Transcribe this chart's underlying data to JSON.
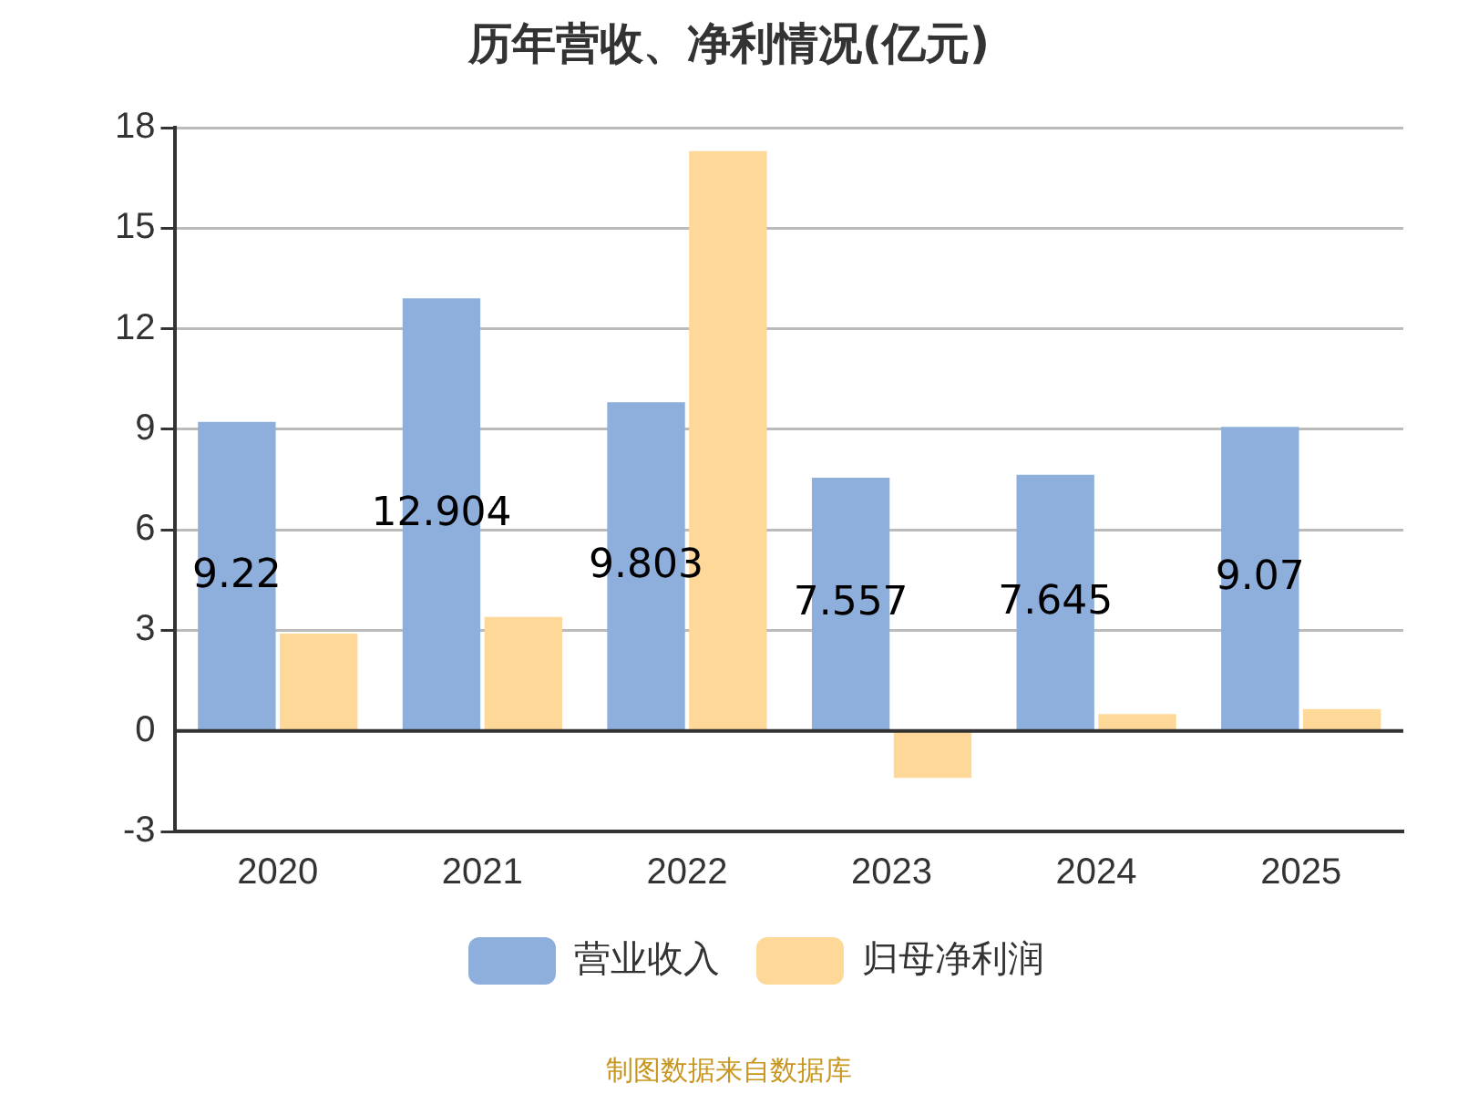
{
  "chart_data": {
    "type": "bar",
    "title": "历年营收、净利情况(亿元)",
    "categories": [
      "2020",
      "2021",
      "2022",
      "2023",
      "2024",
      "2025"
    ],
    "series": [
      {
        "name": "营业收入",
        "color": "#8eaedb",
        "values": [
          9.22,
          12.904,
          9.803,
          7.557,
          7.645,
          9.07
        ],
        "value_labels": [
          "9.22",
          "12.904",
          "9.803",
          "7.557",
          "7.645",
          "9.07"
        ]
      },
      {
        "name": "归母净利润",
        "color": "#fed899",
        "values": [
          2.9,
          3.4,
          17.3,
          -1.4,
          0.5,
          0.65
        ]
      }
    ],
    "ylim": [
      -3,
      18
    ],
    "yticks": [
      -3,
      0,
      3,
      6,
      9,
      12,
      15,
      18
    ],
    "grid": "y",
    "legend": "bottom",
    "annotations": [
      "制图数据来自数据库"
    ]
  }
}
